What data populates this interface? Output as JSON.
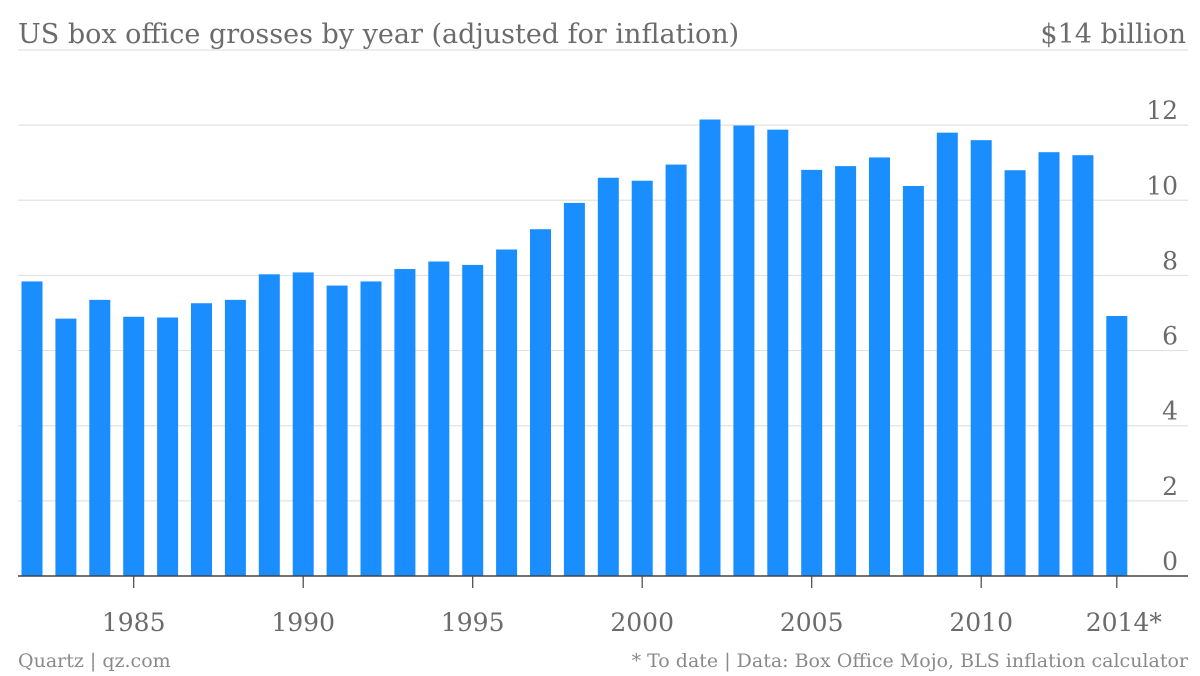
{
  "chart_data": {
    "type": "bar",
    "title": "US box office grosses by year (adjusted for inflation)",
    "y_unit_label": "$14 billion",
    "footer_left": "Quartz | qz.com",
    "footer_right": "* To date | Data: Box Office Mojo, BLS inflation calculator",
    "ylim": [
      0,
      14
    ],
    "yticks": [
      0,
      2,
      4,
      6,
      8,
      10,
      12
    ],
    "xtick_labels": [
      {
        "year": 1985,
        "label": "1985"
      },
      {
        "year": 1990,
        "label": "1990"
      },
      {
        "year": 1995,
        "label": "1995"
      },
      {
        "year": 2000,
        "label": "2000"
      },
      {
        "year": 2005,
        "label": "2005"
      },
      {
        "year": 2010,
        "label": "2010"
      },
      {
        "year": 2014,
        "label": "2014*"
      }
    ],
    "categories": [
      1982,
      1983,
      1984,
      1985,
      1986,
      1987,
      1988,
      1989,
      1990,
      1991,
      1992,
      1993,
      1994,
      1995,
      1996,
      1997,
      1998,
      1999,
      2000,
      2001,
      2002,
      2003,
      2004,
      2005,
      2006,
      2007,
      2008,
      2009,
      2010,
      2011,
      2012,
      2013,
      2014
    ],
    "values": [
      7.84,
      6.85,
      7.35,
      6.9,
      6.88,
      7.26,
      7.35,
      8.03,
      8.08,
      7.73,
      7.84,
      8.17,
      8.37,
      8.28,
      8.69,
      9.23,
      9.93,
      10.6,
      10.52,
      10.95,
      12.15,
      11.99,
      11.88,
      10.81,
      10.91,
      11.14,
      10.38,
      11.8,
      11.6,
      10.8,
      11.28,
      11.2,
      6.92
    ],
    "bar_color": "#1a8dff"
  }
}
